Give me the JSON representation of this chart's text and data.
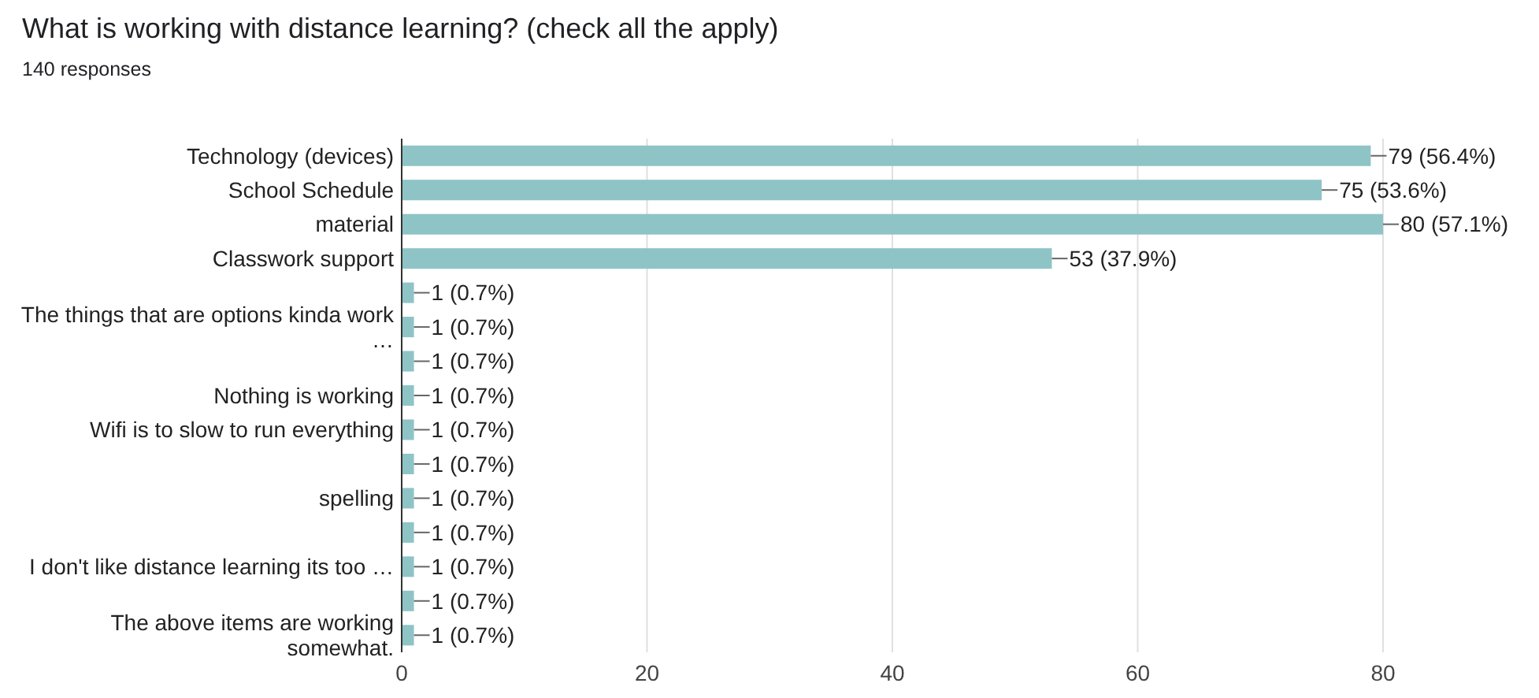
{
  "chart_data": {
    "type": "bar",
    "orientation": "horizontal",
    "title": "What is working with distance learning? (check all the apply)",
    "subtitle": "140 responses",
    "categories": [
      "Technology (devices)",
      "School Schedule",
      "material",
      "Classwork support",
      null,
      "The things that are options kinda work …",
      null,
      "Nothing is working",
      "Wifi is to slow to run everything",
      null,
      "spelling",
      null,
      "I don't like distance learning its too …",
      null,
      "The above items are working somewhat."
    ],
    "values": [
      79,
      75,
      80,
      53,
      1,
      1,
      1,
      1,
      1,
      1,
      1,
      1,
      1,
      1,
      1
    ],
    "value_labels": [
      "79 (56.4%)",
      "75 (53.6%)",
      "80 (57.1%)",
      "53 (37.9%)",
      "1 (0.7%)",
      "1 (0.7%)",
      "1 (0.7%)",
      "1 (0.7%)",
      "1 (0.7%)",
      "1 (0.7%)",
      "1 (0.7%)",
      "1 (0.7%)",
      "1 (0.7%)",
      "1 (0.7%)",
      "1 (0.7%)"
    ],
    "color": "#8fc4c6",
    "xlim": [
      0,
      80
    ],
    "xticks": [
      0,
      20,
      40,
      60,
      80
    ],
    "grid": "x"
  }
}
